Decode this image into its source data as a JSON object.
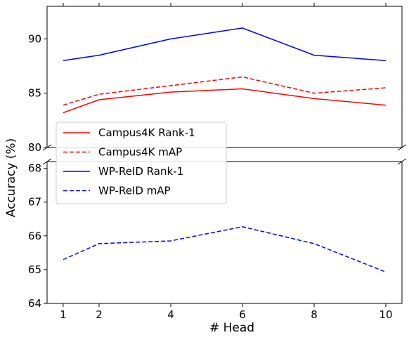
{
  "chart_data": {
    "type": "line",
    "x": [
      1,
      2,
      4,
      6,
      8,
      10
    ],
    "xticks": [
      "1",
      "2",
      "4",
      "6",
      "8",
      "10"
    ],
    "xlabel": "# Head",
    "ylabel": "Accuracy (%)",
    "broken_axis": true,
    "upper_panel": {
      "ylim": [
        80,
        93
      ],
      "yticks": [
        "80",
        "85",
        "90"
      ]
    },
    "lower_panel": {
      "ylim": [
        64,
        68.2
      ],
      "yticks": [
        "64",
        "65",
        "66",
        "67",
        "68"
      ]
    },
    "legend_position": "center-left",
    "series": [
      {
        "name": "Campus4K Rank-1",
        "color": "#ff0000",
        "dash": "solid",
        "panel": "upper",
        "values": [
          83.2,
          84.4,
          85.1,
          85.4,
          84.5,
          83.9
        ]
      },
      {
        "name": "Campus4K mAP",
        "color": "#ff0000",
        "dash": "dashed",
        "panel": "upper",
        "values": [
          83.9,
          84.9,
          85.7,
          86.5,
          85.0,
          85.5
        ]
      },
      {
        "name": "WP-ReID Rank-1",
        "color": "#0000ff",
        "dash": "solid",
        "panel": "upper",
        "values": [
          88.0,
          88.5,
          90.0,
          91.0,
          88.5,
          88.0
        ]
      },
      {
        "name": "WP-ReID mAP",
        "color": "#0000ff",
        "dash": "dashed",
        "panel": "lower",
        "values": [
          65.3,
          65.77,
          65.85,
          66.27,
          65.77,
          64.93
        ]
      }
    ]
  }
}
